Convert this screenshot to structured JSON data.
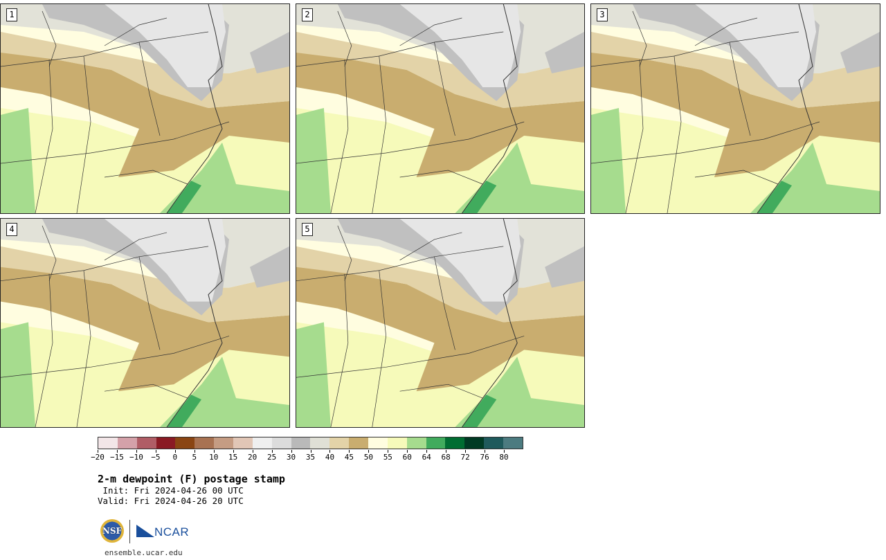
{
  "panels": [
    {
      "label": "1"
    },
    {
      "label": "2"
    },
    {
      "label": "3"
    },
    {
      "label": "4"
    },
    {
      "label": "5"
    }
  ],
  "colorbar": {
    "colors": [
      "#f3e6e8",
      "#d4a1a9",
      "#b05d66",
      "#8a1a24",
      "#8a4513",
      "#a87252",
      "#c59c83",
      "#e1c6b6",
      "#efefef",
      "#dcdcdc",
      "#b9b9b9",
      "#e0e0d6",
      "#e3d3a8",
      "#c9ad6f",
      "#fffde0",
      "#f6faba",
      "#a6dc8e",
      "#41ab5d",
      "#006d32",
      "#003a24",
      "#1f5a5c",
      "#4c7b80"
    ],
    "tick_labels": [
      "−20",
      "−15",
      "−10",
      "−5",
      "0",
      "5",
      "10",
      "15",
      "20",
      "25",
      "30",
      "35",
      "40",
      "45",
      "50",
      "55",
      "60",
      "64",
      "68",
      "72",
      "76",
      "80"
    ]
  },
  "map_colors": {
    "gray_light": "#e6e6e6",
    "gray_mid": "#c0c0c0",
    "gray_pale": "#e2e2d8",
    "tan_light": "#e3d3a8",
    "tan": "#c9ad6f",
    "cream": "#fffde0",
    "yellow": "#f6faba",
    "green_light": "#a6dc8e",
    "green": "#41ab5d"
  },
  "title": "2-m dewpoint (F) postage stamp",
  "init_line": " Init: Fri 2024-04-26 00 UTC",
  "valid_line": "Valid: Fri 2024-04-26 20 UTC",
  "url": "ensemble.ucar.edu",
  "logos": {
    "nsf": "NSF",
    "ncar": "NCAR"
  }
}
